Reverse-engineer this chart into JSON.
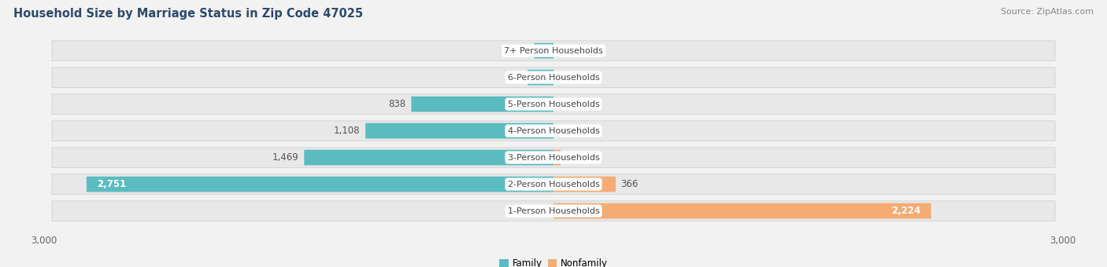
{
  "title": "Household Size by Marriage Status in Zip Code 47025",
  "source": "Source: ZipAtlas.com",
  "categories": [
    "7+ Person Households",
    "6-Person Households",
    "5-Person Households",
    "4-Person Households",
    "3-Person Households",
    "2-Person Households",
    "1-Person Households"
  ],
  "family_values": [
    114,
    152,
    838,
    1108,
    1469,
    2751,
    0
  ],
  "nonfamily_values": [
    0,
    0,
    0,
    0,
    41,
    366,
    2224
  ],
  "family_color": "#5bbcbf",
  "nonfamily_color": "#f5ab72",
  "xlim": 3000,
  "background_color": "#f2f2f2",
  "row_bg_color": "#e8e8e8",
  "row_bg_light": "#f8f8f8",
  "title_fontsize": 10.5,
  "label_fontsize": 8.5,
  "tick_fontsize": 8.5,
  "source_fontsize": 8,
  "title_color": "#2d4a6b",
  "text_color": "#555555",
  "source_color": "#888888"
}
